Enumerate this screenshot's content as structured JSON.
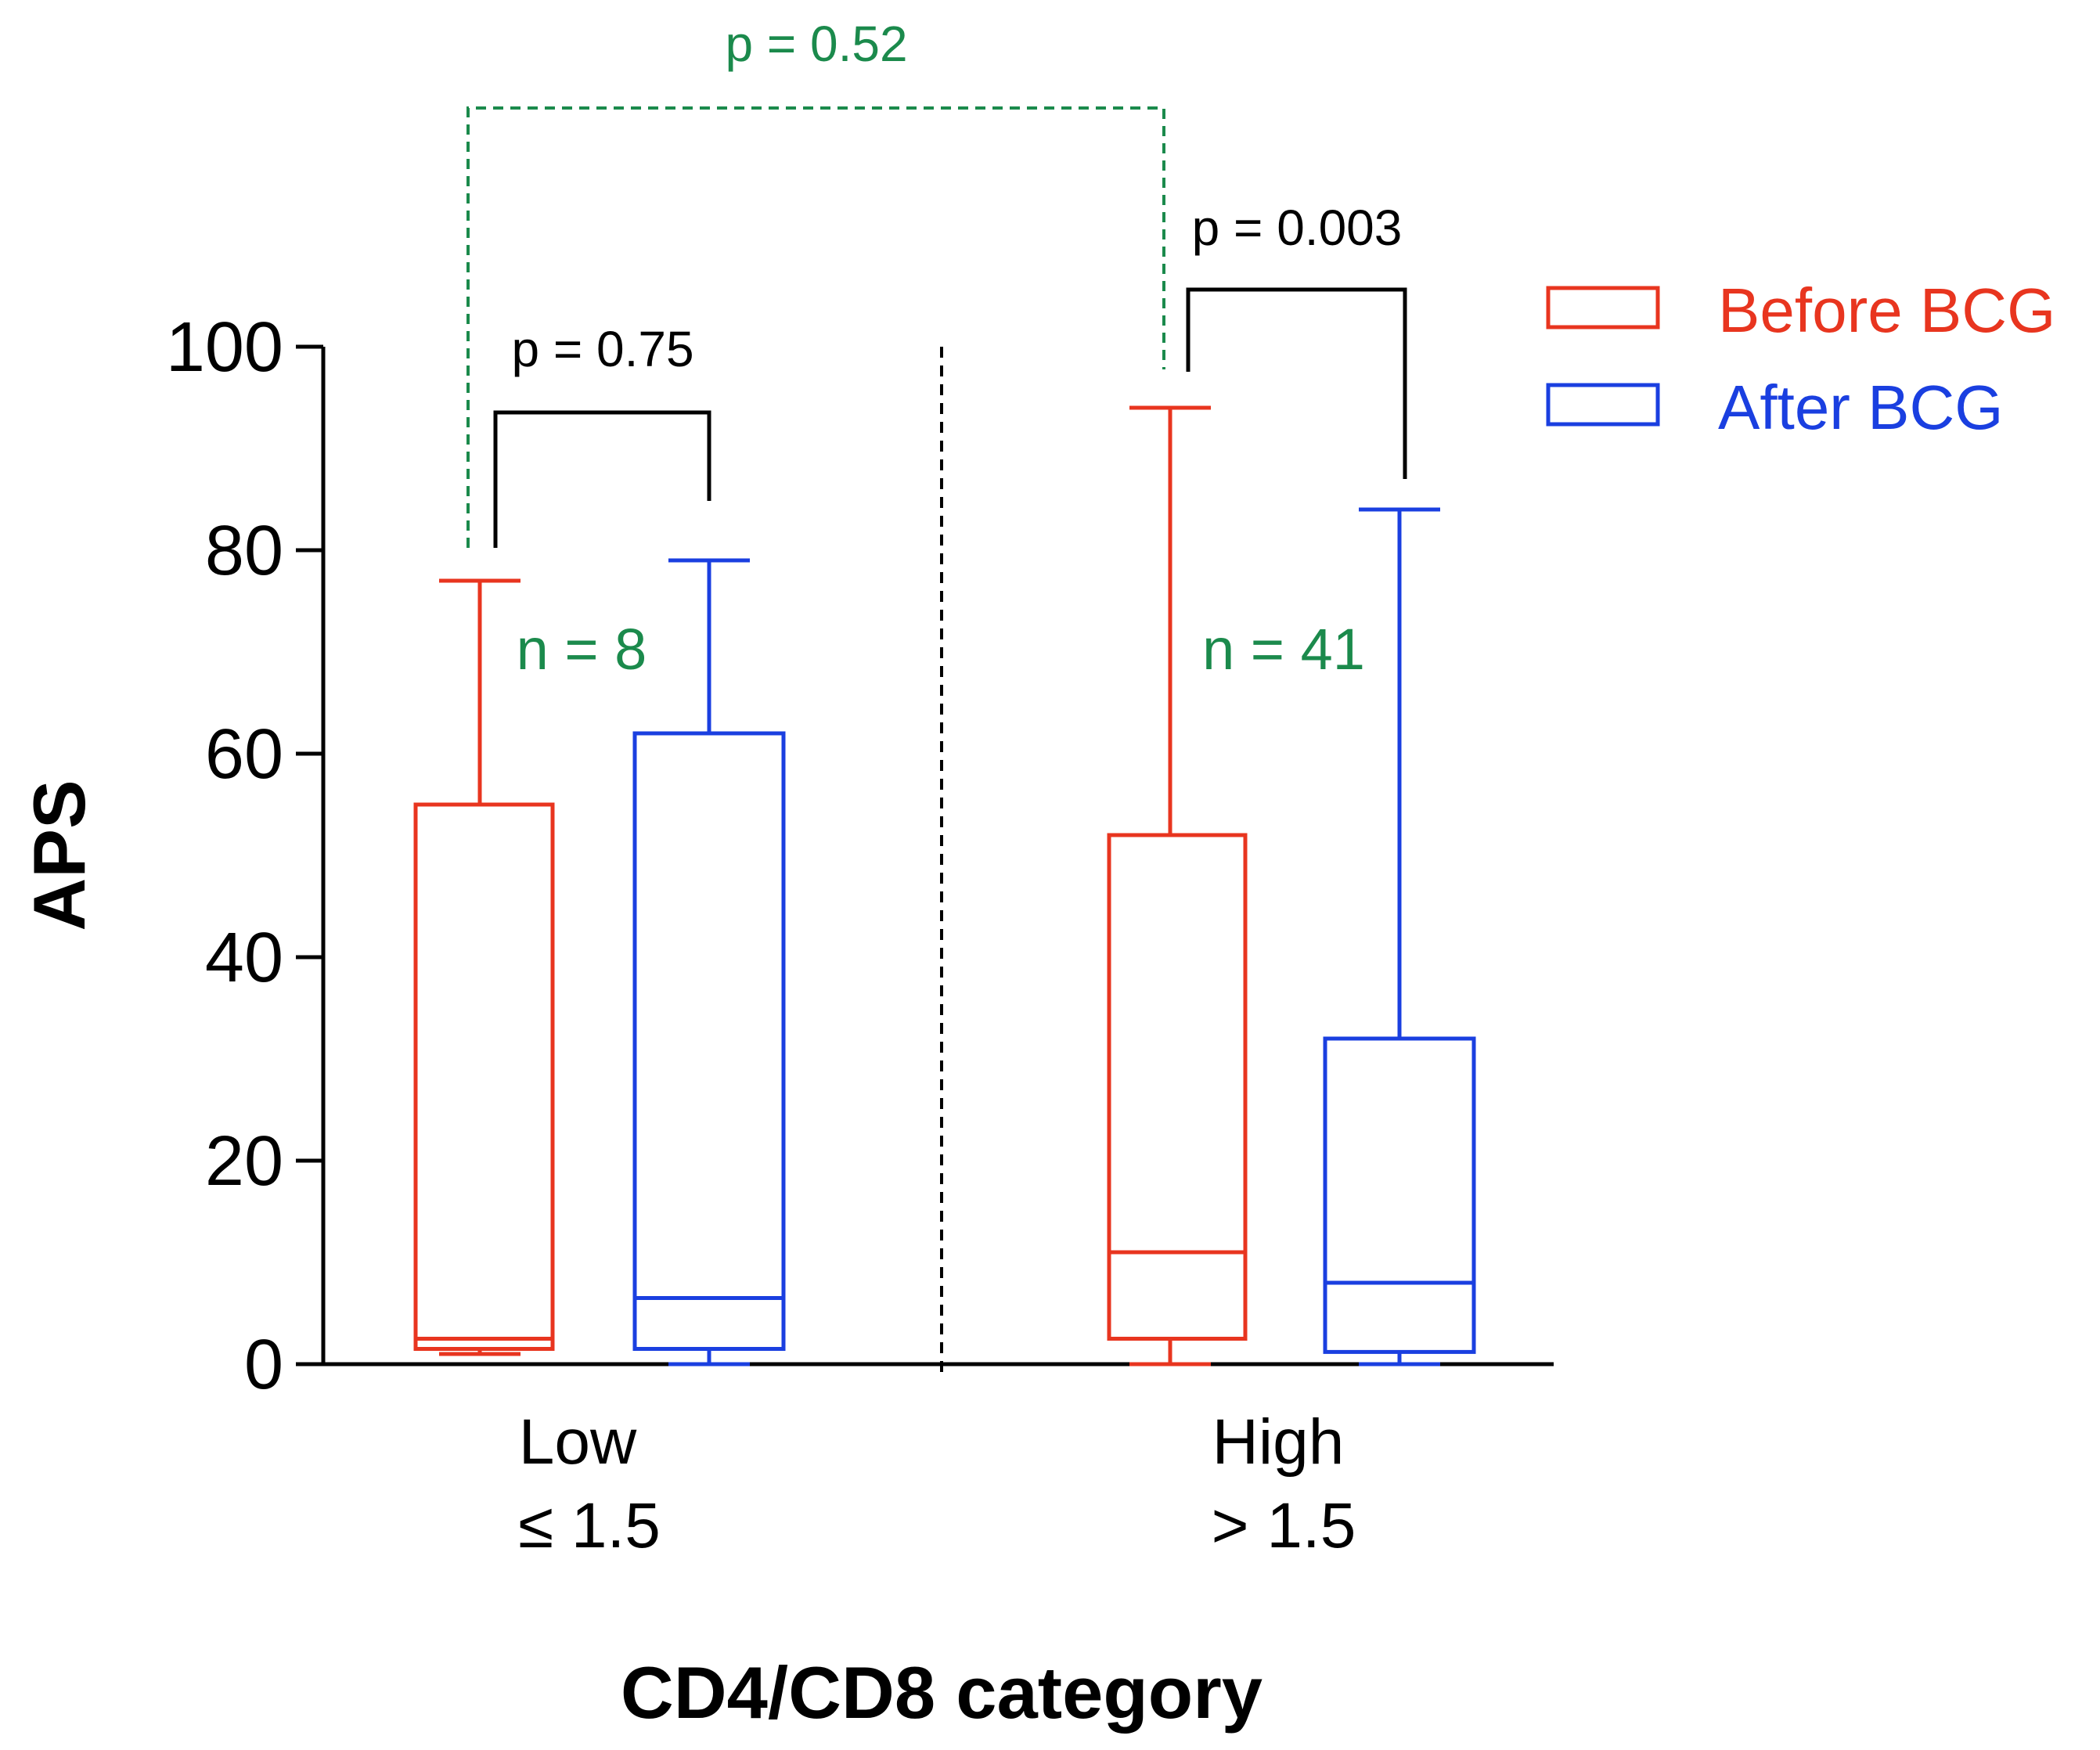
{
  "chart_data": {
    "type": "boxplot",
    "title": "",
    "xlabel": "CD4/CD8 category",
    "ylabel": "APS",
    "ylim": [
      0,
      100
    ],
    "yticks": [
      0,
      20,
      40,
      60,
      80,
      100
    ],
    "grid": false,
    "legend_position": "top-right",
    "categories": [
      {
        "line1": "Low",
        "line2": "≤ 1.5"
      },
      {
        "line1": "High",
        "line2": "> 1.5"
      }
    ],
    "series": [
      {
        "name": "Before BCG",
        "color": "#e8351f",
        "boxes": [
          {
            "min": 1,
            "q1": 1.5,
            "median": 2.5,
            "q3": 55,
            "max": 77
          },
          {
            "min": 0,
            "q1": 2.5,
            "median": 11,
            "q3": 52,
            "max": 94
          }
        ]
      },
      {
        "name": "After BCG",
        "color": "#1a3fe0",
        "boxes": [
          {
            "min": 0,
            "q1": 1.5,
            "median": 6.5,
            "q3": 62,
            "max": 79
          },
          {
            "min": 0,
            "q1": 1.2,
            "median": 8,
            "q3": 32,
            "max": 84
          }
        ]
      }
    ],
    "annotations": {
      "n_labels": [
        "n = 8",
        "n = 41"
      ],
      "pairwise": [
        {
          "label": "p = 0.75",
          "group": 0
        },
        {
          "label": "p = 0.003",
          "group": 1
        }
      ],
      "between_groups": {
        "label": "p = 0.52",
        "color": "#1b8a4c"
      }
    }
  }
}
